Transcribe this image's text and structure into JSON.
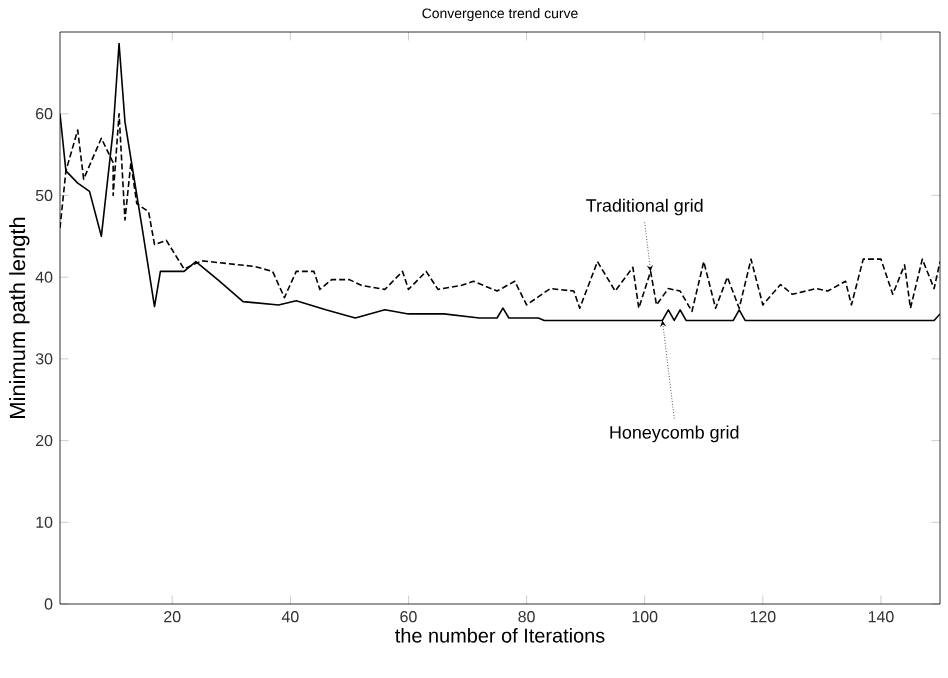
{
  "chart_data": {
    "type": "line",
    "title": "Convergence trend curve",
    "xlabel": "the number of Iterations",
    "ylabel": "Minimum path length",
    "xlim": [
      1,
      150
    ],
    "ylim": [
      0,
      70
    ],
    "xticks": [
      20,
      40,
      60,
      80,
      100,
      120,
      140
    ],
    "yticks": [
      0,
      10,
      20,
      30,
      40,
      50,
      60
    ],
    "series": [
      {
        "name": "Traditional grid",
        "color": "#000000",
        "line_style": "dashed",
        "x": [
          1,
          2,
          4,
          5,
          8,
          10,
          10,
          11,
          12,
          13,
          14,
          16,
          17,
          19,
          22,
          25,
          34,
          37,
          39,
          41,
          44,
          45,
          47,
          50,
          52,
          56,
          59,
          60,
          63,
          65,
          69,
          71,
          75,
          78,
          80,
          84,
          88,
          89,
          92,
          95,
          98,
          99,
          101,
          102,
          104,
          106,
          108,
          110,
          112,
          114,
          116,
          118,
          120,
          123,
          125,
          129,
          131,
          134,
          135,
          137,
          140,
          142,
          144,
          145,
          147,
          149,
          150
        ],
        "values": [
          46,
          53,
          58,
          52,
          57,
          54,
          50,
          60,
          47,
          54,
          49,
          48,
          44,
          44.5,
          41,
          42,
          41.3,
          40.7,
          37.5,
          40.7,
          40.7,
          38.5,
          39.7,
          39.7,
          39,
          38.5,
          40.7,
          38.5,
          40.7,
          38.5,
          39,
          39.5,
          38.3,
          39.5,
          36.6,
          38.6,
          38.3,
          36.2,
          41.9,
          38.3,
          41.2,
          36.2,
          40.7,
          36.6,
          38.6,
          38.3,
          35.8,
          41.9,
          36.2,
          40,
          36.2,
          42.2,
          36.6,
          39.1,
          37.9,
          38.6,
          38.3,
          39.5,
          36.6,
          42.2,
          42.2,
          37.9,
          41.5,
          36.2,
          42.2,
          38.6,
          41.9
        ]
      },
      {
        "name": "Honeycomb grid",
        "color": "#000000",
        "line_style": "solid",
        "x": [
          1,
          2,
          4,
          6,
          8,
          10,
          11,
          12,
          15,
          17,
          18,
          22,
          24,
          28,
          32,
          38,
          41,
          46,
          51,
          56,
          60,
          66,
          72,
          75,
          76,
          77,
          82,
          83,
          103,
          104,
          105,
          106,
          107,
          115,
          116,
          117,
          149,
          150
        ],
        "values": [
          60,
          53,
          51.5,
          50.5,
          45,
          58,
          68.6,
          59,
          45.6,
          36.4,
          40.7,
          40.7,
          41.9,
          39.5,
          37,
          36.6,
          37.1,
          36,
          35,
          36,
          35.5,
          35.5,
          35,
          35,
          36.2,
          35,
          35,
          34.7,
          34.7,
          36,
          34.7,
          36,
          34.7,
          34.7,
          36,
          34.7,
          34.7,
          35.5
        ]
      }
    ],
    "legend": false,
    "grid": false
  }
}
